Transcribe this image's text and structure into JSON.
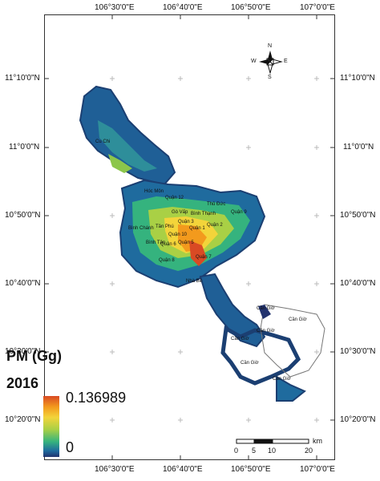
{
  "map": {
    "top_lon_labels": [
      "106°30'0\"E",
      "106°40'0\"E",
      "106°50'0\"E",
      "107°0'0\"E"
    ],
    "bottom_lon_labels": [
      "106°30'0\"E",
      "106°40'0\"E",
      "106°50'0\"E",
      "107°0'0\"E"
    ],
    "left_lat_labels": [
      "11°10'0\"N",
      "11°0'0\"N",
      "10°50'0\"N",
      "10°40'0\"N",
      "10°30'0\"N",
      "10°20'0\"N"
    ],
    "right_lat_labels": [
      "11°10'0\"N",
      "11°0'0\"N",
      "10°50'0\"N",
      "10°40'0\"N",
      "10°30'0\"N",
      "10°20'0\"N"
    ],
    "compass": {
      "n": "N",
      "s": "S",
      "e": "E",
      "w": "W"
    },
    "districts": [
      "Cu Chi",
      "Hóc Môn",
      "Thủ Đức",
      "Quận 12",
      "Gò Vấp",
      "Bình Thạnh",
      "Quận 2",
      "Quận 1",
      "Quận 3",
      "Quận 10",
      "Quận 5",
      "Quận 6",
      "Quận 7",
      "Quận 9",
      "Bình Chánh",
      "Tân Phú",
      "Bình Tân",
      "Quận 8",
      "Nhà Bè",
      "Cần Giờ",
      "Cần Giờ",
      "Cần Giờ",
      "Cần Giờ",
      "Cần Giờ",
      "Cần Giờ"
    ]
  },
  "legend": {
    "title": "PM (Gg)",
    "year": "2016",
    "max": "0.136989",
    "min": "0",
    "colors": [
      "#d94a24",
      "#f39a1d",
      "#f3d43a",
      "#a9d045",
      "#35b37e",
      "#1f6b9e",
      "#22336f"
    ]
  },
  "scale": {
    "labels": [
      "0",
      "5",
      "10",
      "20"
    ],
    "unit": "km"
  }
}
